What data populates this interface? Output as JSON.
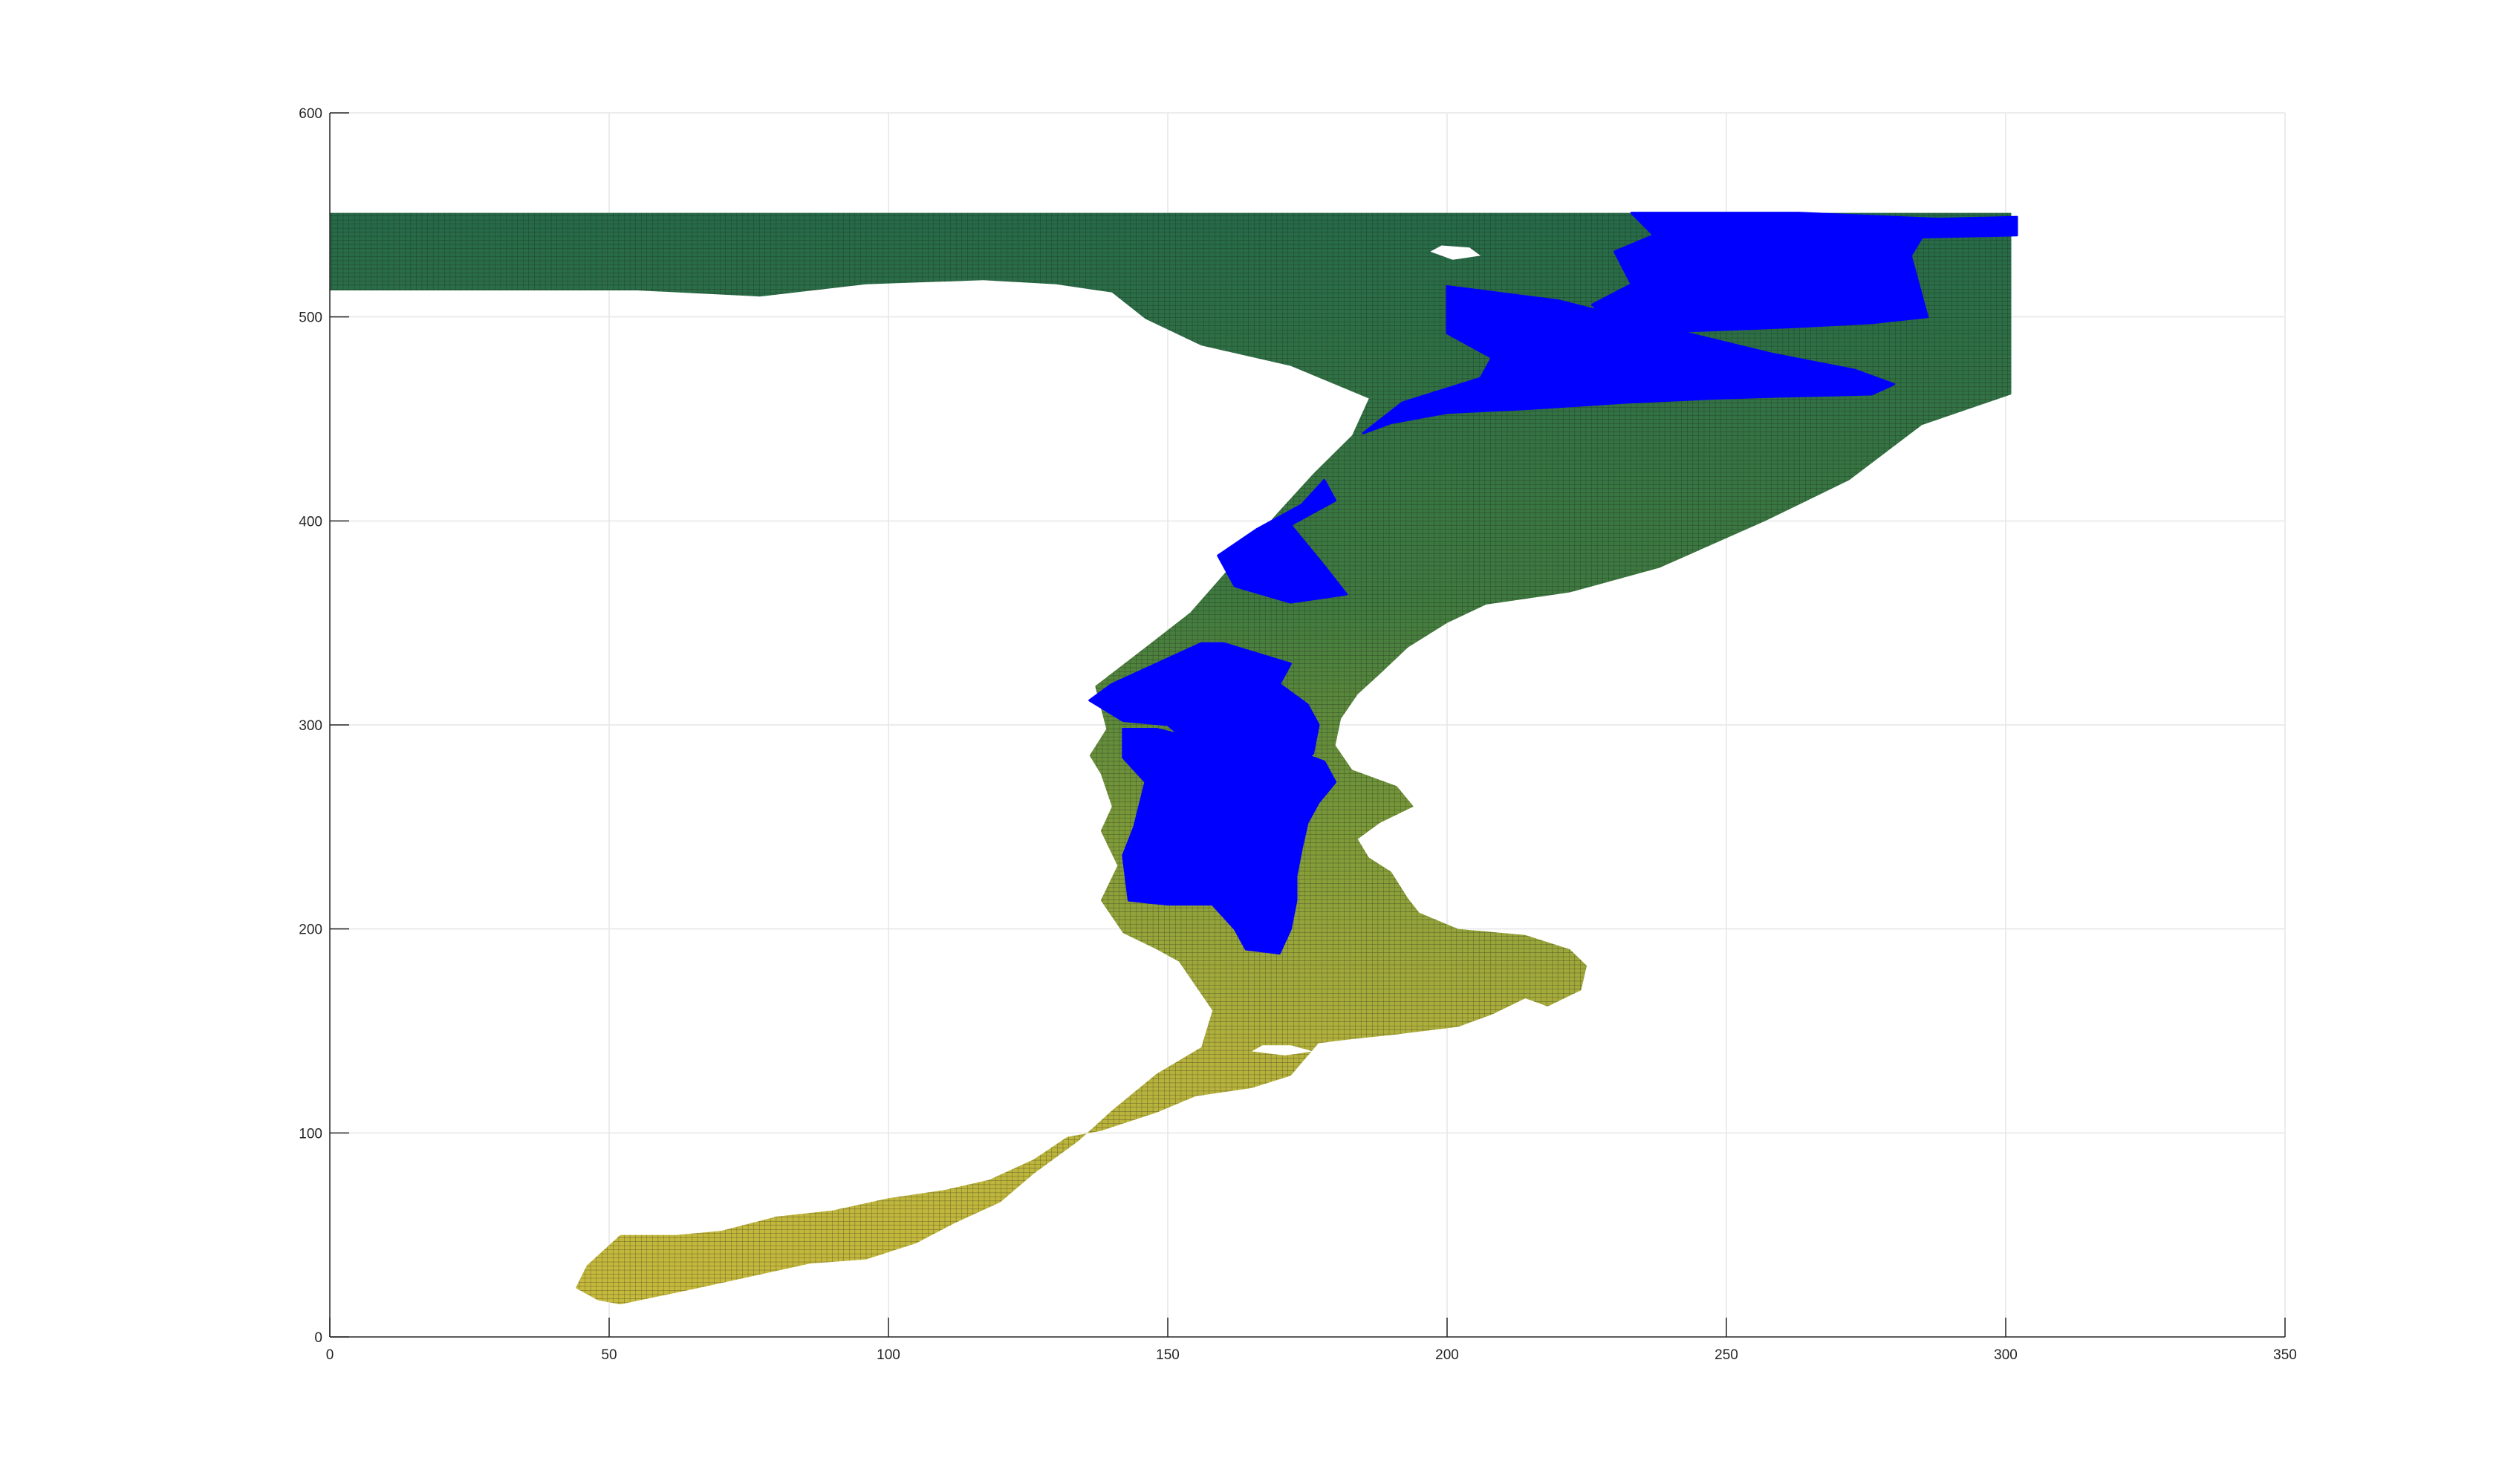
{
  "chart_data": {
    "type": "surface-map",
    "title": "",
    "xlabel": "",
    "ylabel": "",
    "xlim": [
      0,
      350
    ],
    "ylim": [
      0,
      600
    ],
    "x_ticks": [
      0,
      50,
      100,
      150,
      200,
      250,
      300,
      350
    ],
    "y_ticks": [
      0,
      100,
      200,
      300,
      400,
      500,
      600
    ],
    "grid": true,
    "colors": {
      "deep": "#256a48",
      "mid": "#7c9a38",
      "shallow": "#c9bb3c",
      "mesh": "#1a1a1a",
      "highlight": "#0000ff"
    },
    "domain_outline": [
      [
        0,
        551
      ],
      [
        301,
        551
      ],
      [
        301,
        462
      ],
      [
        285,
        447
      ],
      [
        272,
        420
      ],
      [
        257,
        400
      ],
      [
        238,
        377
      ],
      [
        222,
        365
      ],
      [
        207,
        359
      ],
      [
        200,
        350
      ],
      [
        193,
        338
      ],
      [
        188,
        325
      ],
      [
        184,
        315
      ],
      [
        181,
        303
      ],
      [
        180,
        290
      ],
      [
        183,
        278
      ],
      [
        191,
        270
      ],
      [
        194,
        260
      ],
      [
        188,
        252
      ],
      [
        184,
        244
      ],
      [
        186,
        235
      ],
      [
        190,
        228
      ],
      [
        193,
        215
      ],
      [
        195,
        208
      ],
      [
        202,
        200
      ],
      [
        214,
        197
      ],
      [
        222,
        190
      ],
      [
        225,
        182
      ],
      [
        224,
        170
      ],
      [
        218,
        162
      ],
      [
        214,
        166
      ],
      [
        208,
        158
      ],
      [
        202,
        152
      ],
      [
        196,
        150
      ],
      [
        190,
        148
      ],
      [
        183,
        146
      ],
      [
        177,
        144
      ],
      [
        172,
        128
      ],
      [
        165,
        122
      ],
      [
        155,
        118
      ],
      [
        148,
        110
      ],
      [
        138,
        101
      ],
      [
        132,
        98
      ],
      [
        126,
        87
      ],
      [
        118,
        77
      ],
      [
        110,
        72
      ],
      [
        100,
        68
      ],
      [
        90,
        62
      ],
      [
        80,
        59
      ],
      [
        70,
        52
      ],
      [
        62,
        50
      ],
      [
        52,
        50
      ],
      [
        46,
        35
      ],
      [
        44,
        24
      ],
      [
        48,
        18
      ],
      [
        52,
        16
      ],
      [
        66,
        24
      ],
      [
        76,
        30
      ],
      [
        86,
        36
      ],
      [
        96,
        38
      ],
      [
        105,
        46
      ],
      [
        112,
        56
      ],
      [
        120,
        66
      ],
      [
        126,
        80
      ],
      [
        134,
        96
      ],
      [
        140,
        111
      ],
      [
        148,
        129
      ],
      [
        156,
        142
      ],
      [
        158,
        160
      ],
      [
        155,
        172
      ],
      [
        152,
        184
      ],
      [
        148,
        190
      ],
      [
        142,
        198
      ],
      [
        140,
        206
      ],
      [
        138,
        214
      ],
      [
        141,
        231
      ],
      [
        138,
        248
      ],
      [
        140,
        260
      ],
      [
        138,
        276
      ],
      [
        136,
        285
      ],
      [
        139,
        298
      ],
      [
        137,
        319
      ],
      [
        146,
        338
      ],
      [
        154,
        355
      ],
      [
        162,
        380
      ],
      [
        170,
        405
      ],
      [
        176,
        423
      ],
      [
        183,
        442
      ],
      [
        186,
        460
      ],
      [
        172,
        476
      ],
      [
        156,
        486
      ],
      [
        146,
        499
      ],
      [
        140,
        512
      ],
      [
        130,
        516
      ],
      [
        117,
        518
      ],
      [
        96,
        516
      ],
      [
        77,
        510
      ],
      [
        55,
        513
      ],
      [
        34,
        513
      ],
      [
        0,
        513
      ]
    ],
    "blue_regions": [
      [
        [
          233,
          551
        ],
        [
          263,
          551
        ],
        [
          288,
          548
        ],
        [
          302,
          549
        ],
        [
          302,
          540
        ],
        [
          285,
          539
        ],
        [
          283,
          530
        ],
        [
          286,
          500
        ],
        [
          276,
          497
        ],
        [
          262,
          495
        ],
        [
          243,
          493
        ],
        [
          230,
          495
        ],
        [
          226,
          506
        ],
        [
          233,
          516
        ],
        [
          230,
          532
        ],
        [
          237,
          540
        ]
      ],
      [
        [
          200,
          515
        ],
        [
          220,
          508
        ],
        [
          240,
          494
        ],
        [
          258,
          482
        ],
        [
          273,
          474
        ],
        [
          280,
          467
        ],
        [
          276,
          462
        ],
        [
          260,
          461
        ],
        [
          248,
          460
        ],
        [
          232,
          458
        ],
        [
          215,
          455
        ],
        [
          200,
          453
        ],
        [
          190,
          448
        ],
        [
          185,
          443
        ],
        [
          192,
          458
        ],
        [
          206,
          470
        ],
        [
          208,
          480
        ],
        [
          200,
          492
        ]
      ],
      [
        [
          178,
          420
        ],
        [
          174,
          408
        ],
        [
          166,
          396
        ],
        [
          159,
          383
        ],
        [
          162,
          368
        ],
        [
          172,
          360
        ],
        [
          182,
          364
        ],
        [
          178,
          378
        ],
        [
          172,
          398
        ],
        [
          180,
          410
        ]
      ],
      [
        [
          156,
          340
        ],
        [
          148,
          330
        ],
        [
          140,
          320
        ],
        [
          136,
          312
        ],
        [
          142,
          302
        ],
        [
          150,
          300
        ],
        [
          156,
          286
        ],
        [
          164,
          280
        ],
        [
          172,
          278
        ],
        [
          176,
          286
        ],
        [
          177,
          300
        ],
        [
          175,
          310
        ],
        [
          170,
          320
        ],
        [
          172,
          330
        ],
        [
          160,
          340
        ]
      ],
      [
        [
          142,
          298
        ],
        [
          142,
          284
        ],
        [
          146,
          272
        ],
        [
          144,
          250
        ],
        [
          142,
          236
        ],
        [
          143,
          214
        ],
        [
          150,
          212
        ],
        [
          158,
          212
        ],
        [
          162,
          200
        ],
        [
          164,
          190
        ],
        [
          170,
          188
        ],
        [
          172,
          200
        ],
        [
          173,
          214
        ],
        [
          173,
          226
        ],
        [
          174,
          240
        ],
        [
          175,
          252
        ],
        [
          177,
          262
        ],
        [
          180,
          272
        ],
        [
          178,
          282
        ],
        [
          170,
          290
        ],
        [
          162,
          292
        ],
        [
          154,
          294
        ],
        [
          148,
          298
        ]
      ]
    ],
    "white_holes": [
      [
        [
          197,
          532
        ],
        [
          201,
          528
        ],
        [
          206,
          530
        ],
        [
          204,
          534
        ],
        [
          199,
          535
        ]
      ],
      [
        [
          165,
          140
        ],
        [
          171,
          138
        ],
        [
          176,
          140
        ],
        [
          172,
          143
        ],
        [
          167,
          143
        ]
      ]
    ]
  }
}
